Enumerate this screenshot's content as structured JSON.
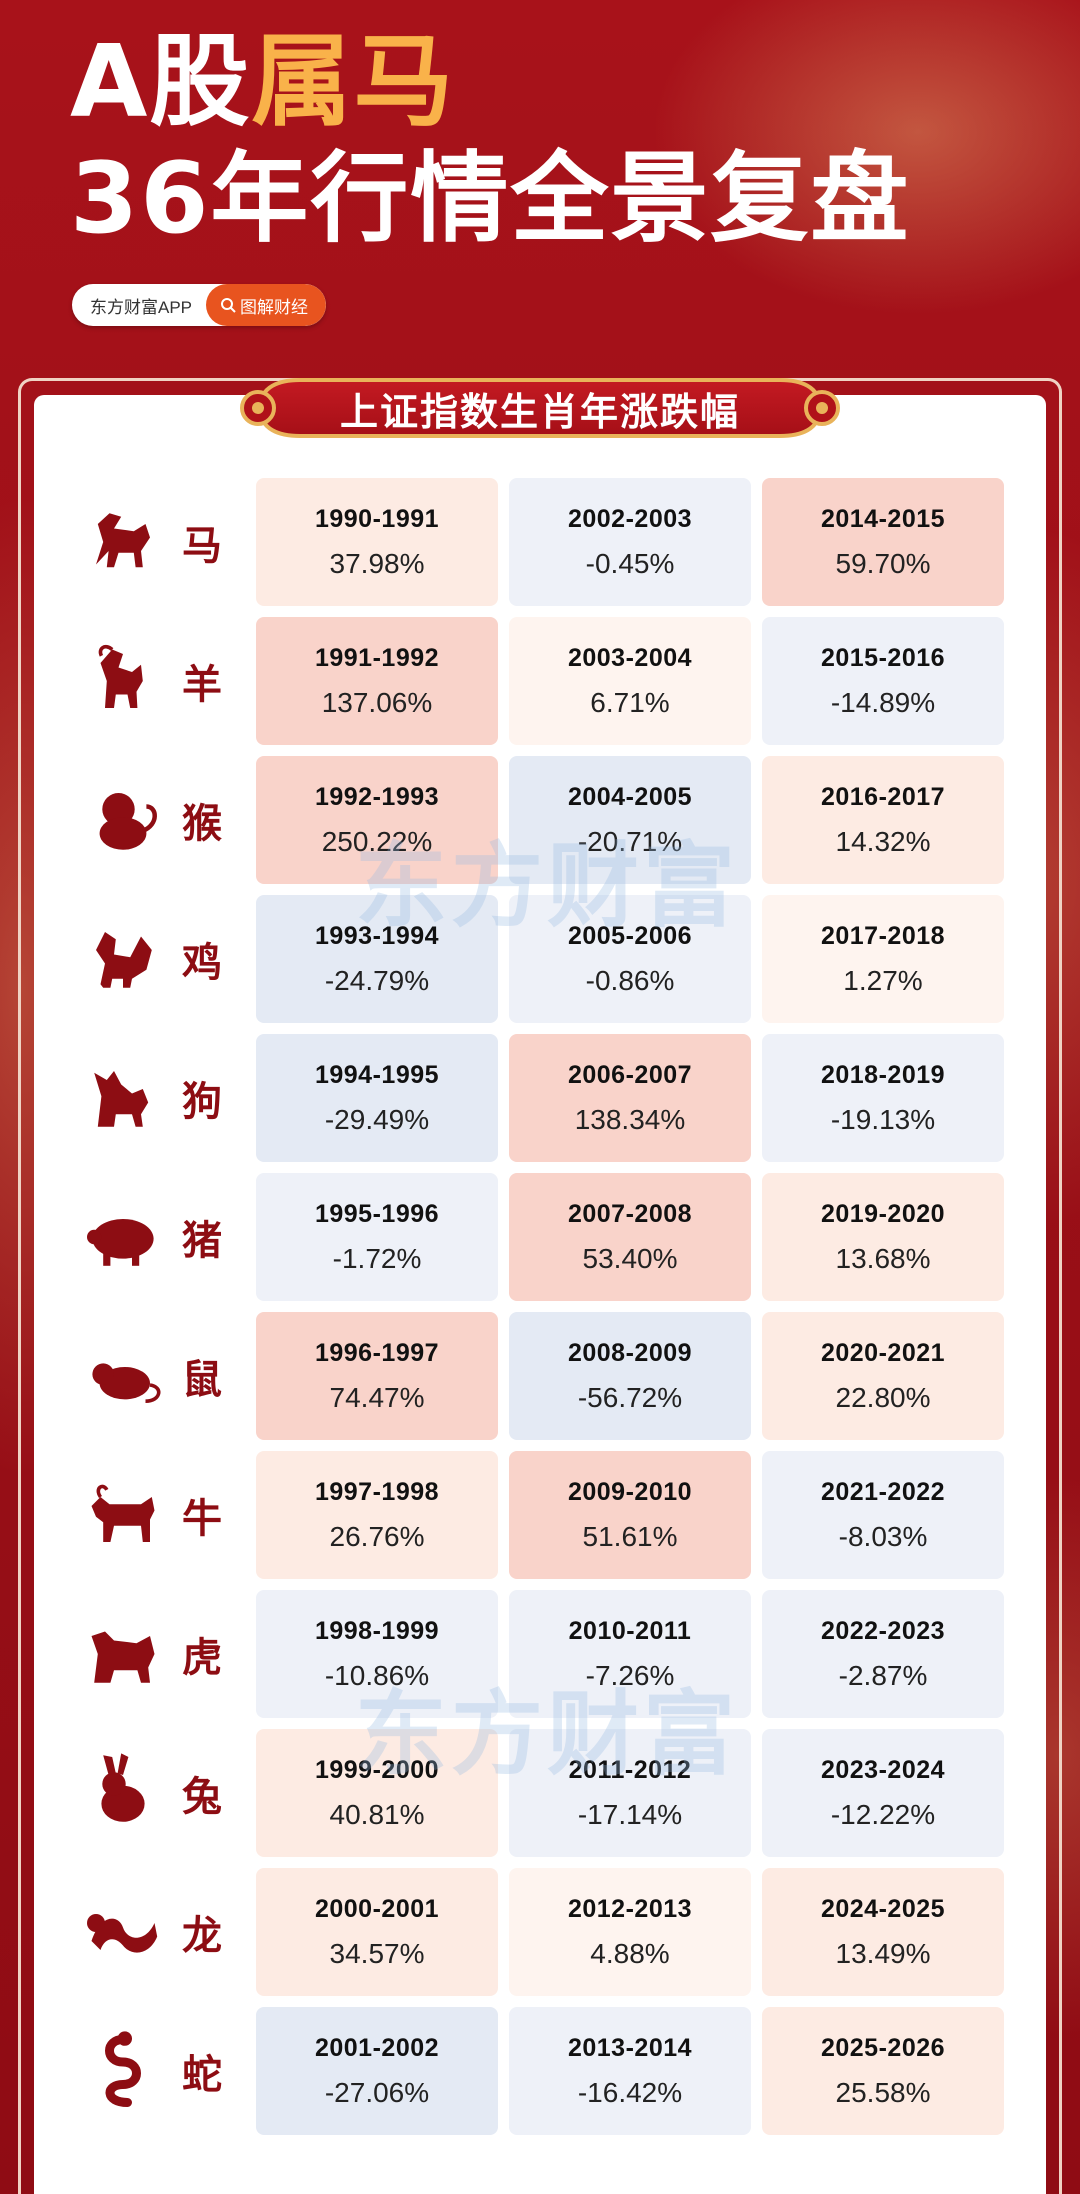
{
  "header": {
    "title_line1_prefix": "A股",
    "title_line1_highlight": "属马",
    "title_line2": "36年行情全景复盘",
    "brand_app": "东方财富APP",
    "brand_tag": "图解财经"
  },
  "banner": {
    "title": "上证指数生肖年涨跌幅"
  },
  "watermark": "东方财富",
  "colors": {
    "background_red": "#9a0f17",
    "highlight_gold": "#f9b24a",
    "zodiac_red": "#8d0d13",
    "tag_orange": "#e8541f"
  },
  "rows": [
    {
      "zodiac": "马",
      "icon": "horse-icon",
      "cells": [
        {
          "years": "1990-1991",
          "change": "37.98%",
          "tone": "light"
        },
        {
          "years": "2002-2003",
          "change": "-0.45%",
          "tone": "bluepale"
        },
        {
          "years": "2014-2015",
          "change": "59.70%",
          "tone": "strong"
        }
      ]
    },
    {
      "zodiac": "羊",
      "icon": "goat-icon",
      "cells": [
        {
          "years": "1991-1992",
          "change": "137.06%",
          "tone": "strong"
        },
        {
          "years": "2003-2004",
          "change": "6.71%",
          "tone": "pale"
        },
        {
          "years": "2015-2016",
          "change": "-14.89%",
          "tone": "bluepale"
        }
      ]
    },
    {
      "zodiac": "猴",
      "icon": "monkey-icon",
      "cells": [
        {
          "years": "1992-1993",
          "change": "250.22%",
          "tone": "strong"
        },
        {
          "years": "2004-2005",
          "change": "-20.71%",
          "tone": "blue"
        },
        {
          "years": "2016-2017",
          "change": "14.32%",
          "tone": "light"
        }
      ]
    },
    {
      "zodiac": "鸡",
      "icon": "rooster-icon",
      "cells": [
        {
          "years": "1993-1994",
          "change": "-24.79%",
          "tone": "blue"
        },
        {
          "years": "2005-2006",
          "change": "-0.86%",
          "tone": "bluepale"
        },
        {
          "years": "2017-2018",
          "change": "1.27%",
          "tone": "pale"
        }
      ]
    },
    {
      "zodiac": "狗",
      "icon": "dog-icon",
      "cells": [
        {
          "years": "1994-1995",
          "change": "-29.49%",
          "tone": "blue"
        },
        {
          "years": "2006-2007",
          "change": "138.34%",
          "tone": "strong"
        },
        {
          "years": "2018-2019",
          "change": "-19.13%",
          "tone": "bluepale"
        }
      ]
    },
    {
      "zodiac": "猪",
      "icon": "pig-icon",
      "cells": [
        {
          "years": "1995-1996",
          "change": "-1.72%",
          "tone": "bluepale"
        },
        {
          "years": "2007-2008",
          "change": "53.40%",
          "tone": "strong"
        },
        {
          "years": "2019-2020",
          "change": "13.68%",
          "tone": "light"
        }
      ]
    },
    {
      "zodiac": "鼠",
      "icon": "rat-icon",
      "cells": [
        {
          "years": "1996-1997",
          "change": "74.47%",
          "tone": "strong"
        },
        {
          "years": "2008-2009",
          "change": "-56.72%",
          "tone": "blue"
        },
        {
          "years": "2020-2021",
          "change": "22.80%",
          "tone": "light"
        }
      ]
    },
    {
      "zodiac": "牛",
      "icon": "ox-icon",
      "cells": [
        {
          "years": "1997-1998",
          "change": "26.76%",
          "tone": "light"
        },
        {
          "years": "2009-2010",
          "change": "51.61%",
          "tone": "strong"
        },
        {
          "years": "2021-2022",
          "change": "-8.03%",
          "tone": "bluepale"
        }
      ]
    },
    {
      "zodiac": "虎",
      "icon": "tiger-icon",
      "cells": [
        {
          "years": "1998-1999",
          "change": "-10.86%",
          "tone": "bluepale"
        },
        {
          "years": "2010-2011",
          "change": "-7.26%",
          "tone": "bluepale"
        },
        {
          "years": "2022-2023",
          "change": "-2.87%",
          "tone": "bluepale"
        }
      ]
    },
    {
      "zodiac": "兔",
      "icon": "rabbit-icon",
      "cells": [
        {
          "years": "1999-2000",
          "change": "40.81%",
          "tone": "light"
        },
        {
          "years": "2011-2012",
          "change": "-17.14%",
          "tone": "bluepale"
        },
        {
          "years": "2023-2024",
          "change": "-12.22%",
          "tone": "bluepale"
        }
      ]
    },
    {
      "zodiac": "龙",
      "icon": "dragon-icon",
      "cells": [
        {
          "years": "2000-2001",
          "change": "34.57%",
          "tone": "light"
        },
        {
          "years": "2012-2013",
          "change": "4.88%",
          "tone": "pale"
        },
        {
          "years": "2024-2025",
          "change": "13.49%",
          "tone": "light"
        }
      ]
    },
    {
      "zodiac": "蛇",
      "icon": "snake-icon",
      "cells": [
        {
          "years": "2001-2002",
          "change": "-27.06%",
          "tone": "blue"
        },
        {
          "years": "2013-2014",
          "change": "-16.42%",
          "tone": "bluepale"
        },
        {
          "years": "2025-2026",
          "change": "25.58%",
          "tone": "light"
        }
      ]
    }
  ]
}
